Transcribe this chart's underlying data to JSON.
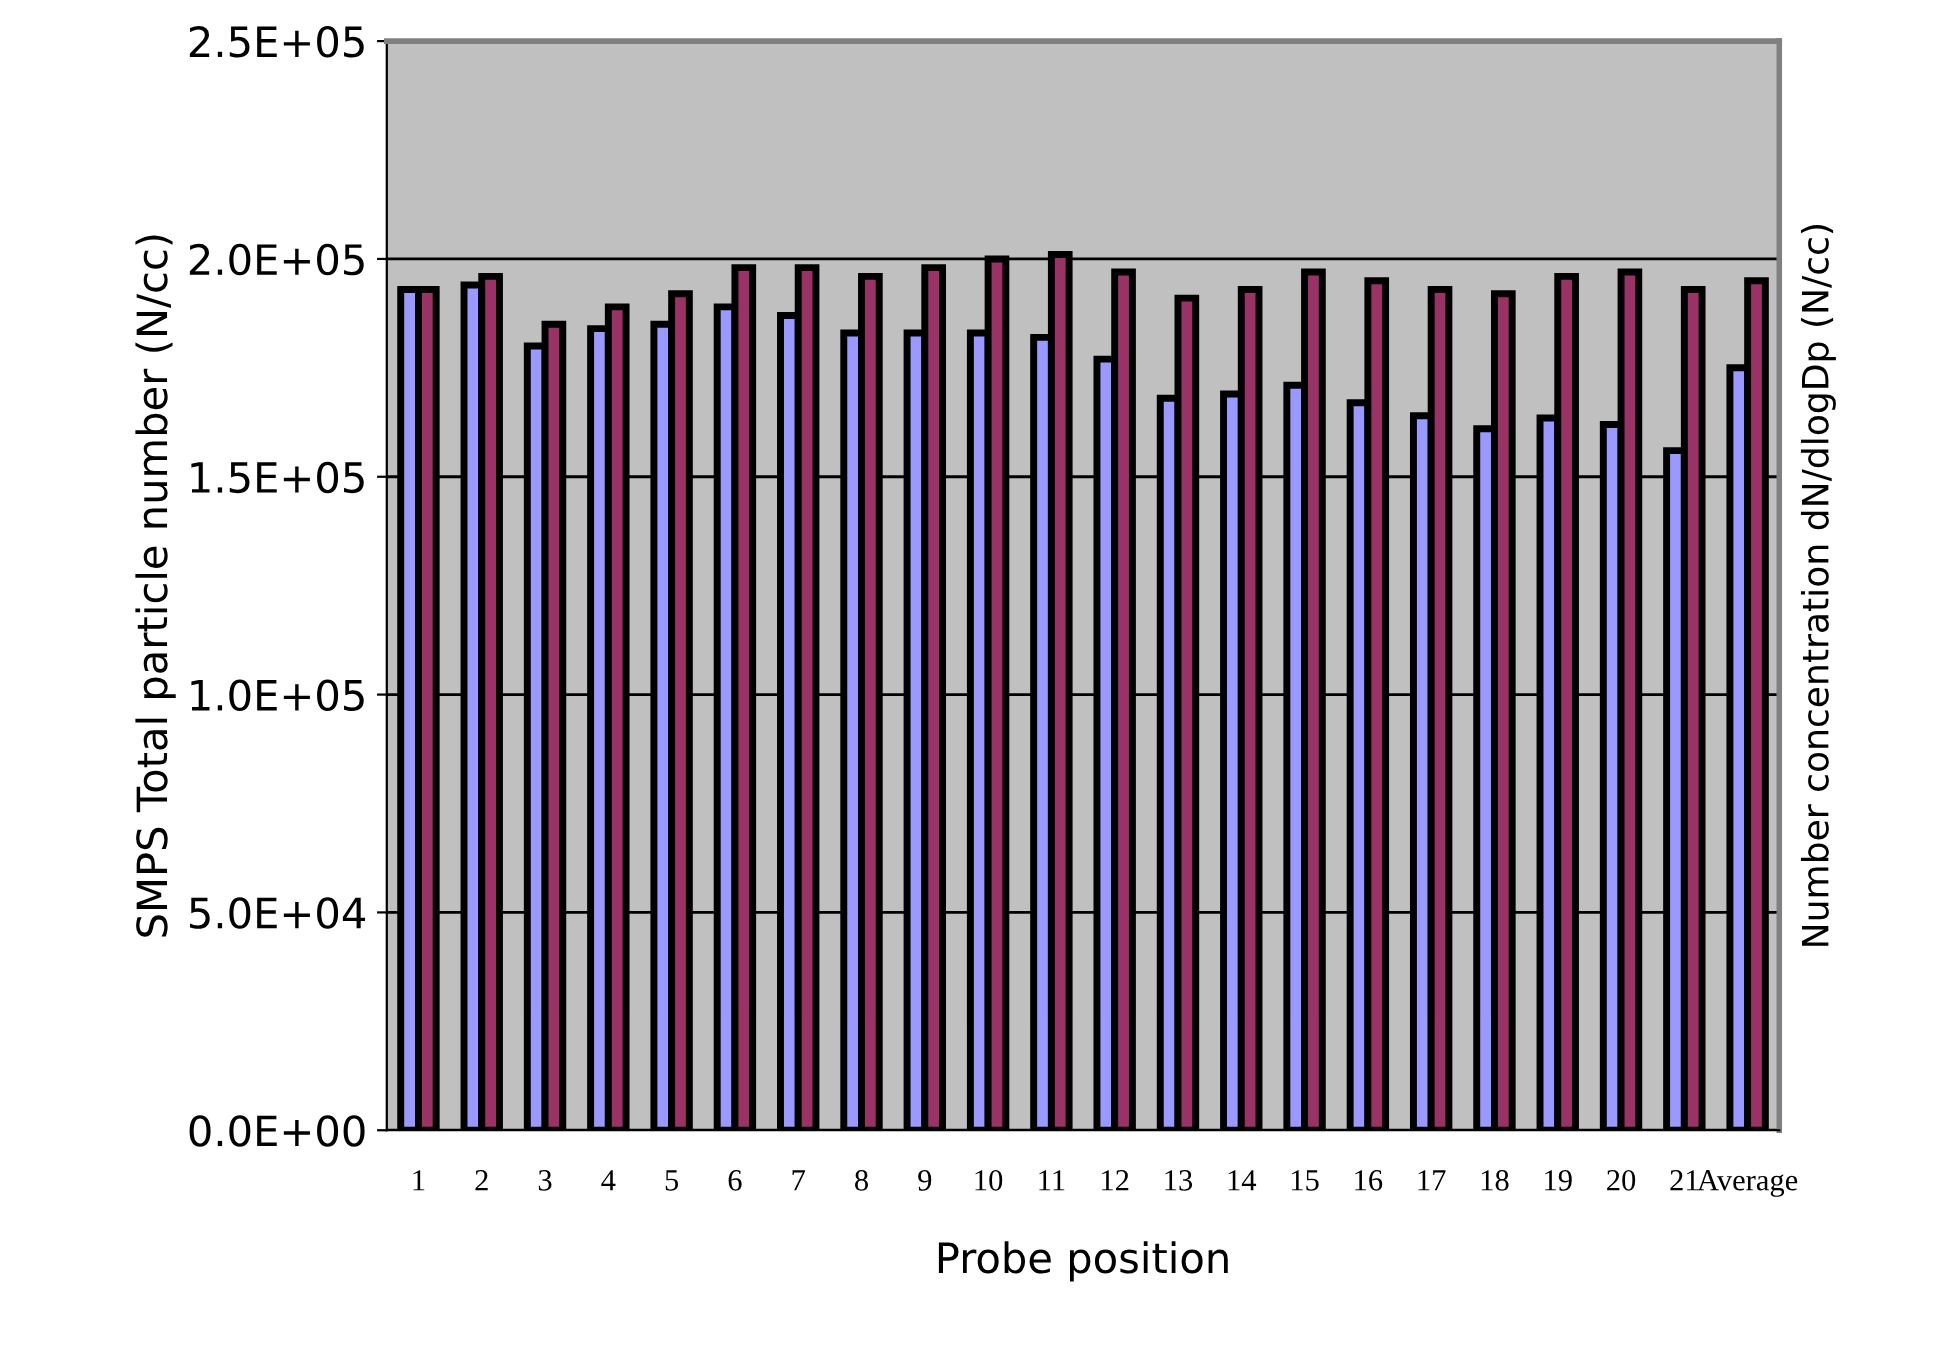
{
  "chart_data": [
    {
      "type": "bar",
      "xlabel": "Probe position",
      "ylabel": "SMPS Total particle number (N/cc)",
      "categories": [
        "1",
        "2",
        "3",
        "4",
        "5",
        "6",
        "7",
        "8",
        "9",
        "10",
        "11",
        "12",
        "13",
        "14",
        "15",
        "16",
        "17",
        "18",
        "19",
        "20",
        "21",
        "Average"
      ],
      "series": [
        {
          "color": "#9999ff",
          "values": [
            193000,
            194000,
            180000,
            184000,
            185000,
            189000,
            187000,
            183000,
            183000,
            183000,
            182000,
            177000,
            168000,
            169000,
            171000,
            167000,
            164000,
            161000,
            163500,
            162000,
            156000,
            175000
          ]
        },
        {
          "color": "#993366",
          "values": [
            193000,
            196000,
            185000,
            189000,
            192000,
            198000,
            198000,
            196000,
            198000,
            200000,
            201000,
            197000,
            191000,
            193000,
            197000,
            195000,
            193000,
            192000,
            196000,
            197000,
            193000,
            195000
          ]
        }
      ],
      "ylim": [
        0,
        250000
      ],
      "yticks": [
        {
          "value": 0,
          "label": "0.0E+00"
        },
        {
          "value": 50000,
          "label": "5.0E+04"
        },
        {
          "value": 100000,
          "label": "1.0E+05"
        },
        {
          "value": 150000,
          "label": "1.5E+05"
        },
        {
          "value": 200000,
          "label": "2.0E+05"
        },
        {
          "value": 250000,
          "label": "2.5E+05"
        }
      ],
      "grid": "y"
    },
    {
      "type": "other",
      "ylabel": "Number concentration dN/dlogDp (N/cc)"
    }
  ]
}
